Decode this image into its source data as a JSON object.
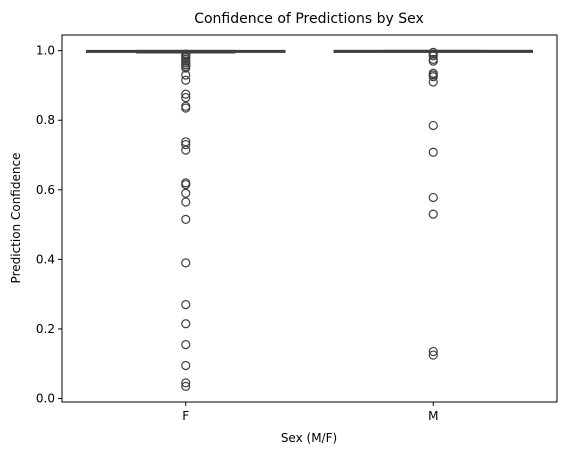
{
  "chart_data": {
    "type": "box",
    "title": "Confidence of Predictions by Sex",
    "xlabel": "Sex (M/F)",
    "ylabel": "Prediction Confidence",
    "categories": [
      "F",
      "M"
    ],
    "ylim": [
      -0.01,
      1.045
    ],
    "yticks": [
      0.0,
      0.2,
      0.4,
      0.6,
      0.8,
      1.0
    ],
    "ytick_labels": [
      "0.0",
      "0.2",
      "0.4",
      "0.6",
      "0.8",
      "1.0"
    ],
    "grid": false,
    "box_color": "#3f3f3f",
    "boxes": [
      {
        "category": "F",
        "whisker_low": 0.994,
        "q1": 0.997,
        "median": 0.999,
        "q3": 1.0,
        "whisker_high": 1.0,
        "outliers": [
          0.99,
          0.985,
          0.98,
          0.975,
          0.97,
          0.965,
          0.96,
          0.955,
          0.95,
          0.93,
          0.915,
          0.875,
          0.865,
          0.84,
          0.835,
          0.738,
          0.73,
          0.714,
          0.62,
          0.615,
          0.59,
          0.565,
          0.515,
          0.39,
          0.27,
          0.215,
          0.155,
          0.095,
          0.045,
          0.035
        ]
      },
      {
        "category": "M",
        "whisker_low": 0.997,
        "q1": 0.998,
        "median": 1.0,
        "q3": 1.0,
        "whisker_high": 1.0,
        "outliers": [
          0.995,
          0.99,
          0.985,
          0.975,
          0.97,
          0.935,
          0.93,
          0.925,
          0.91,
          0.785,
          0.708,
          0.578,
          0.53,
          0.135,
          0.125
        ]
      }
    ]
  }
}
